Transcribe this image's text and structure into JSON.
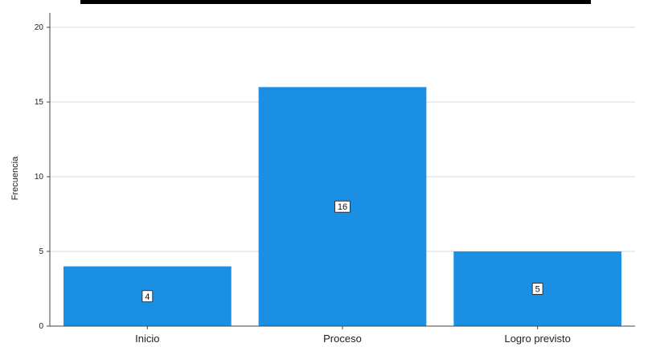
{
  "chart_data": {
    "type": "bar",
    "categories": [
      "Inicio",
      "Proceso",
      "Logro previsto"
    ],
    "values": [
      4,
      16,
      5
    ],
    "data_labels": [
      "4",
      "16",
      "5"
    ],
    "title": "",
    "xlabel": "",
    "ylabel": "Frecuencia",
    "ylim": [
      0,
      20
    ],
    "yticks": [
      0,
      5,
      10,
      15,
      20
    ],
    "grid": true,
    "bar_color": "#1a8fe3"
  }
}
